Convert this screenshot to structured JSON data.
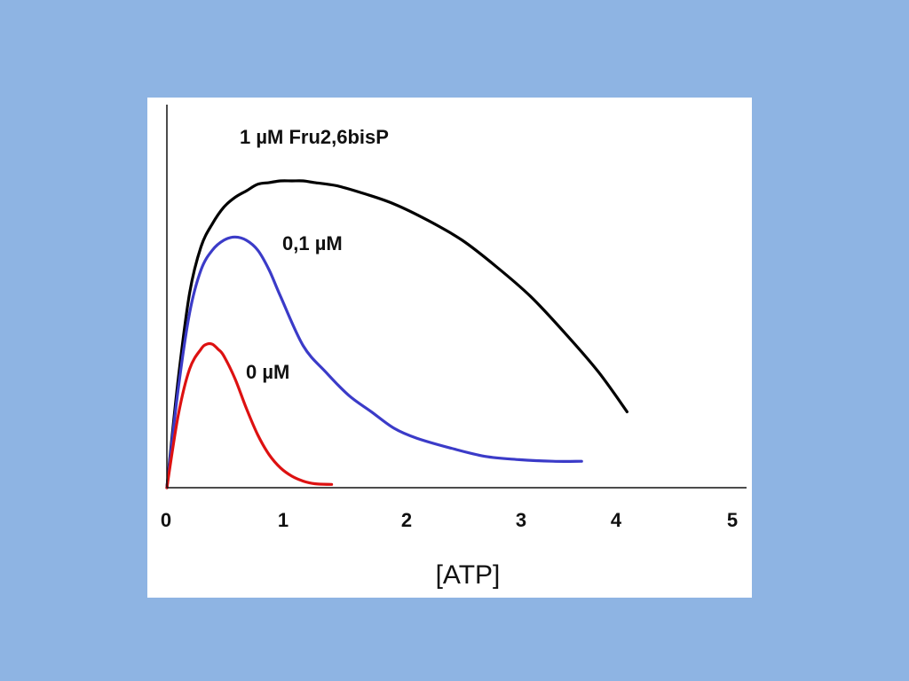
{
  "page": {
    "background_color": "#8eb4e3",
    "panel_color": "#ffffff"
  },
  "chart_data": {
    "type": "line",
    "title": "",
    "xlabel": "[ATP]",
    "ylabel": "",
    "xlim": [
      0,
      5
    ],
    "ylim": [
      0,
      1
    ],
    "x_ticks": [
      "0",
      "1",
      "2",
      "3",
      "4",
      "5"
    ],
    "y_ticks": [],
    "grid": false,
    "legend": "none",
    "series": [
      {
        "name": "1 µM Fru2,6bisP",
        "color": "#000000",
        "x": [
          0,
          0.1,
          0.2,
          0.3,
          0.4,
          0.5,
          0.6,
          0.7,
          0.8,
          0.9,
          1.0,
          1.1,
          1.2,
          1.3,
          1.5,
          1.75,
          2.0,
          2.3,
          2.6,
          2.9,
          3.2,
          3.5,
          3.8,
          4.05
        ],
        "y": [
          0,
          0.33,
          0.59,
          0.73,
          0.8,
          0.85,
          0.88,
          0.9,
          0.92,
          0.925,
          0.93,
          0.93,
          0.93,
          0.925,
          0.915,
          0.89,
          0.86,
          0.81,
          0.75,
          0.67,
          0.58,
          0.47,
          0.35,
          0.23
        ]
      },
      {
        "name": "0,1 µM",
        "color": "#3b3bc8",
        "x": [
          0,
          0.1,
          0.2,
          0.3,
          0.4,
          0.5,
          0.6,
          0.7,
          0.8,
          0.9,
          1.0,
          1.2,
          1.4,
          1.6,
          1.8,
          2.0,
          2.2,
          2.5,
          2.8,
          3.1,
          3.4,
          3.65
        ],
        "y": [
          0,
          0.3,
          0.53,
          0.66,
          0.72,
          0.75,
          0.76,
          0.75,
          0.72,
          0.66,
          0.58,
          0.43,
          0.35,
          0.28,
          0.23,
          0.18,
          0.15,
          0.12,
          0.095,
          0.085,
          0.08,
          0.08
        ]
      },
      {
        "name": "0 µM",
        "color": "#dd1111",
        "x": [
          0,
          0.1,
          0.2,
          0.3,
          0.35,
          0.4,
          0.45,
          0.5,
          0.6,
          0.7,
          0.8,
          0.9,
          1.0,
          1.1,
          1.2,
          1.3,
          1.45
        ],
        "y": [
          0,
          0.22,
          0.36,
          0.42,
          0.435,
          0.435,
          0.42,
          0.4,
          0.33,
          0.24,
          0.16,
          0.1,
          0.06,
          0.035,
          0.02,
          0.012,
          0.01
        ]
      }
    ]
  }
}
